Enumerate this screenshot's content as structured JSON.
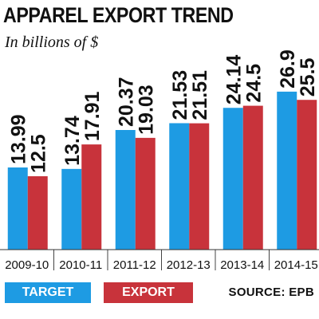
{
  "header": {
    "title": "APPAREL EXPORT TREND",
    "subtitle": "In billions of $"
  },
  "legend": {
    "target_label": "TARGET",
    "export_label": "EXPORT",
    "source": "SOURCE: EPB"
  },
  "colors": {
    "target": "#1e9be3",
    "export": "#c8333b"
  },
  "chart_data": {
    "type": "bar",
    "title": "APPAREL EXPORT TREND",
    "subtitle": "In billions of $",
    "categories": [
      "2009-10",
      "2010-11",
      "2011-12",
      "2012-13",
      "2013-14",
      "2014-15"
    ],
    "series": [
      {
        "name": "TARGET",
        "values": [
          13.99,
          13.74,
          20.37,
          21.53,
          24.14,
          26.9
        ],
        "labels": [
          "13.99",
          "13.74",
          "20.37",
          "21.53",
          "24.14",
          "26.9"
        ]
      },
      {
        "name": "EXPORT",
        "values": [
          12.5,
          17.91,
          19.03,
          21.51,
          24.5,
          25.5
        ],
        "labels": [
          "12.5",
          "17.91",
          "19.03",
          "21.51",
          "24.5",
          "25.5"
        ]
      }
    ],
    "ylim": [
      0,
      33
    ],
    "grid": false,
    "legend": "bottom-left"
  }
}
